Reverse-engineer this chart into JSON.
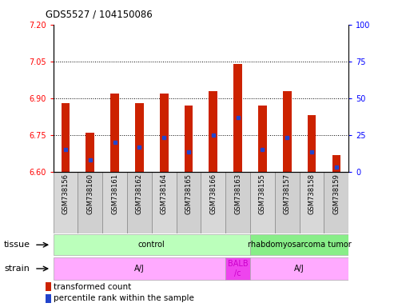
{
  "title": "GDS5527 / 104150086",
  "samples": [
    "GSM738156",
    "GSM738160",
    "GSM738161",
    "GSM738162",
    "GSM738164",
    "GSM738165",
    "GSM738166",
    "GSM738163",
    "GSM738155",
    "GSM738157",
    "GSM738158",
    "GSM738159"
  ],
  "bar_bottoms": [
    6.6,
    6.6,
    6.6,
    6.6,
    6.6,
    6.6,
    6.6,
    6.6,
    6.6,
    6.6,
    6.6,
    6.6
  ],
  "bar_tops": [
    6.88,
    6.76,
    6.92,
    6.88,
    6.92,
    6.87,
    6.93,
    7.04,
    6.87,
    6.93,
    6.83,
    6.67
  ],
  "blue_pos": [
    6.69,
    6.65,
    6.72,
    6.7,
    6.74,
    6.68,
    6.75,
    6.82,
    6.69,
    6.74,
    6.68,
    6.62
  ],
  "ylim_left": [
    6.6,
    7.2
  ],
  "ylim_right": [
    0,
    100
  ],
  "yticks_left": [
    6.6,
    6.75,
    6.9,
    7.05,
    7.2
  ],
  "yticks_right": [
    0,
    25,
    50,
    75,
    100
  ],
  "hlines": [
    6.75,
    6.9,
    7.05
  ],
  "bar_color": "#cc2200",
  "blue_color": "#2244cc",
  "tissue_labels": [
    "control",
    "rhabdomyosarcoma tumor"
  ],
  "tissue_colors": [
    "#bbffbb",
    "#88ee88"
  ],
  "tissue_ranges": [
    [
      0,
      8
    ],
    [
      8,
      12
    ]
  ],
  "strain_labels": [
    "A/J",
    "BALB\n/c",
    "A/J"
  ],
  "strain_colors": [
    "#ffaaff",
    "#ee44ee",
    "#ffaaff"
  ],
  "strain_ranges": [
    [
      0,
      7
    ],
    [
      7,
      8
    ],
    [
      8,
      12
    ]
  ],
  "legend_red": "transformed count",
  "legend_blue": "percentile rank within the sample",
  "bar_width": 0.35,
  "col_colors": [
    "#d8d8d8",
    "#d0d0d0"
  ]
}
